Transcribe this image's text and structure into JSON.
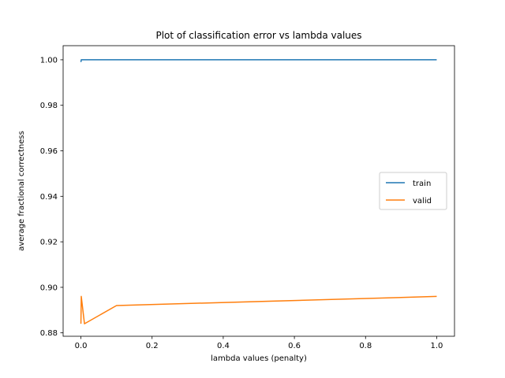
{
  "chart_data": {
    "type": "line",
    "title": "Plot of classification error vs lambda values",
    "xlabel": "lambda values (penalty)",
    "ylabel": "average fractional correctness",
    "xlim": [
      -0.05,
      1.05
    ],
    "ylim": [
      0.8785,
      1.0062
    ],
    "xticks": [
      0.0,
      0.2,
      0.4,
      0.6,
      0.8,
      1.0
    ],
    "xtick_labels": [
      "0.0",
      "0.2",
      "0.4",
      "0.6",
      "0.8",
      "1.0"
    ],
    "yticks": [
      0.88,
      0.9,
      0.92,
      0.94,
      0.96,
      0.98,
      1.0
    ],
    "ytick_labels": [
      "0.88",
      "0.90",
      "0.92",
      "0.94",
      "0.96",
      "0.98",
      "1.00"
    ],
    "grid": false,
    "legend": "center-right",
    "series": [
      {
        "name": "train",
        "color": "#1f77b4",
        "x": [
          0.0,
          0.001,
          0.01,
          0.1,
          1.0
        ],
        "y": [
          0.999,
          1.0,
          1.0,
          1.0,
          1.0
        ]
      },
      {
        "name": "valid",
        "color": "#ff7f0e",
        "x": [
          0.0,
          0.001,
          0.01,
          0.1,
          1.0
        ],
        "y": [
          0.884,
          0.896,
          0.884,
          0.892,
          0.896
        ]
      }
    ]
  }
}
